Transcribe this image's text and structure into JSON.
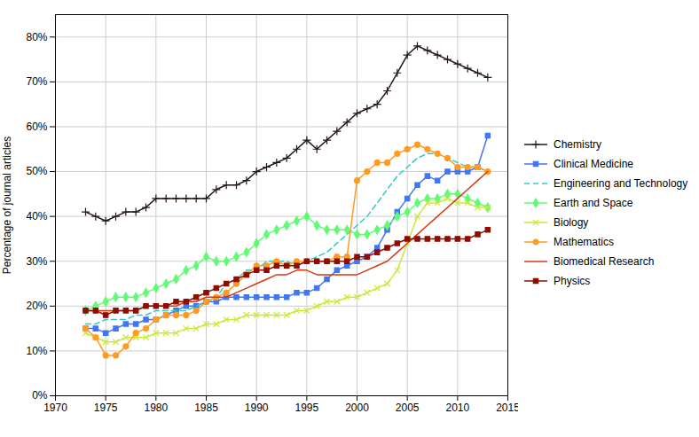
{
  "chart_data": {
    "type": "line",
    "ylabel": "Percentage of journal articles",
    "xlim": [
      1970,
      2015
    ],
    "ylim": [
      0,
      0.85
    ],
    "xticks": [
      1970,
      1975,
      1980,
      1985,
      1990,
      1995,
      2000,
      2005,
      2010,
      2015
    ],
    "yticks": [
      {
        "value": 0.0,
        "label": "0%"
      },
      {
        "value": 0.1,
        "label": "10%"
      },
      {
        "value": 0.2,
        "label": "20%"
      },
      {
        "value": 0.3,
        "label": "30%"
      },
      {
        "value": 0.4,
        "label": "40%"
      },
      {
        "value": 0.5,
        "label": "50%"
      },
      {
        "value": 0.6,
        "label": "60%"
      },
      {
        "value": 0.7,
        "label": "70%"
      },
      {
        "value": 0.8,
        "label": "80%"
      }
    ],
    "grid": true,
    "legend": "right",
    "x": [
      1973,
      1974,
      1975,
      1976,
      1977,
      1978,
      1979,
      1980,
      1981,
      1982,
      1983,
      1984,
      1985,
      1986,
      1987,
      1988,
      1989,
      1990,
      1991,
      1992,
      1993,
      1994,
      1995,
      1996,
      1997,
      1998,
      1999,
      2000,
      2001,
      2002,
      2003,
      2004,
      2005,
      2006,
      2007,
      2008,
      2009,
      2010,
      2011,
      2012,
      2013
    ],
    "series": [
      {
        "name": "Chemistry",
        "marker": "plus",
        "line_style": "solid",
        "values": [
          0.41,
          0.4,
          0.39,
          0.4,
          0.41,
          0.41,
          0.42,
          0.44,
          0.44,
          0.44,
          0.44,
          0.44,
          0.44,
          0.46,
          0.47,
          0.47,
          0.48,
          0.5,
          0.51,
          0.52,
          0.53,
          0.55,
          0.57,
          0.55,
          0.57,
          0.59,
          0.61,
          0.63,
          0.64,
          0.65,
          0.68,
          0.72,
          0.76,
          0.78,
          0.77,
          0.76,
          0.75,
          0.74,
          0.73,
          0.72,
          0.71
        ]
      },
      {
        "name": "Clinical Medicine",
        "marker": "square",
        "line_style": "solid",
        "values": [
          0.15,
          0.15,
          0.14,
          0.15,
          0.16,
          0.16,
          0.17,
          0.17,
          0.18,
          0.19,
          0.2,
          0.2,
          0.21,
          0.21,
          0.22,
          0.22,
          0.22,
          0.22,
          0.22,
          0.22,
          0.22,
          0.23,
          0.23,
          0.24,
          0.26,
          0.28,
          0.29,
          0.3,
          0.31,
          0.33,
          0.37,
          0.41,
          0.44,
          0.47,
          0.49,
          0.48,
          0.5,
          0.5,
          0.5,
          0.51,
          0.58
        ]
      },
      {
        "name": "Engineering and Technology",
        "line_style": "dashed",
        "values": [
          0.16,
          0.16,
          0.17,
          0.17,
          0.17,
          0.18,
          0.18,
          0.19,
          0.19,
          0.19,
          0.19,
          0.2,
          0.21,
          0.22,
          0.25,
          0.26,
          0.28,
          0.28,
          0.3,
          0.3,
          0.3,
          0.29,
          0.3,
          0.31,
          0.32,
          0.34,
          0.36,
          0.38,
          0.4,
          0.43,
          0.46,
          0.49,
          0.51,
          0.53,
          0.54,
          0.54,
          0.53,
          0.52,
          0.51,
          0.51,
          0.5
        ]
      },
      {
        "name": "Earth and Space",
        "marker": "diamond",
        "line_style": "solid",
        "values": [
          0.19,
          0.2,
          0.21,
          0.22,
          0.22,
          0.22,
          0.23,
          0.24,
          0.25,
          0.26,
          0.28,
          0.29,
          0.31,
          0.3,
          0.3,
          0.31,
          0.32,
          0.34,
          0.36,
          0.37,
          0.38,
          0.39,
          0.4,
          0.38,
          0.37,
          0.37,
          0.37,
          0.36,
          0.36,
          0.37,
          0.38,
          0.4,
          0.41,
          0.43,
          0.44,
          0.44,
          0.45,
          0.45,
          0.44,
          0.43,
          0.42
        ]
      },
      {
        "name": "Biology",
        "marker": "times",
        "line_style": "solid",
        "values": [
          0.14,
          0.13,
          0.12,
          0.12,
          0.13,
          0.13,
          0.13,
          0.14,
          0.14,
          0.14,
          0.15,
          0.15,
          0.16,
          0.16,
          0.17,
          0.17,
          0.18,
          0.18,
          0.18,
          0.18,
          0.18,
          0.19,
          0.19,
          0.2,
          0.21,
          0.21,
          0.22,
          0.22,
          0.23,
          0.24,
          0.25,
          0.28,
          0.34,
          0.4,
          0.43,
          0.43,
          0.44,
          0.43,
          0.43,
          0.42,
          0.42
        ]
      },
      {
        "name": "Mathematics",
        "marker": "circle",
        "line_style": "solid",
        "values": [
          0.15,
          0.13,
          0.09,
          0.09,
          0.11,
          0.14,
          0.15,
          0.17,
          0.18,
          0.18,
          0.18,
          0.19,
          0.21,
          0.22,
          0.23,
          0.25,
          0.27,
          0.29,
          0.29,
          0.3,
          0.29,
          0.3,
          0.3,
          0.3,
          0.3,
          0.31,
          0.31,
          0.48,
          0.5,
          0.52,
          0.52,
          0.54,
          0.55,
          0.56,
          0.55,
          0.54,
          0.53,
          0.51,
          0.51,
          0.51,
          0.5
        ]
      },
      {
        "name": "Biomedical Research",
        "line_style": "solid",
        "values": [
          0.19,
          0.19,
          0.19,
          0.19,
          0.19,
          0.19,
          0.2,
          0.2,
          0.2,
          0.2,
          0.21,
          0.21,
          0.22,
          0.22,
          0.22,
          0.23,
          0.24,
          0.25,
          0.26,
          0.27,
          0.27,
          0.28,
          0.28,
          0.27,
          0.27,
          0.27,
          0.27,
          0.27,
          0.28,
          0.29,
          0.3,
          0.32,
          0.34,
          0.36,
          0.38,
          0.4,
          0.42,
          0.44,
          0.46,
          0.48,
          0.5
        ]
      },
      {
        "name": "Physics",
        "marker": "square",
        "line_style": "solid",
        "values": [
          0.19,
          0.19,
          0.18,
          0.19,
          0.19,
          0.19,
          0.2,
          0.2,
          0.2,
          0.21,
          0.21,
          0.22,
          0.23,
          0.24,
          0.25,
          0.26,
          0.27,
          0.28,
          0.28,
          0.29,
          0.29,
          0.29,
          0.3,
          0.3,
          0.3,
          0.3,
          0.3,
          0.31,
          0.31,
          0.32,
          0.33,
          0.34,
          0.35,
          0.35,
          0.35,
          0.35,
          0.35,
          0.35,
          0.35,
          0.36,
          0.37
        ]
      }
    ]
  }
}
